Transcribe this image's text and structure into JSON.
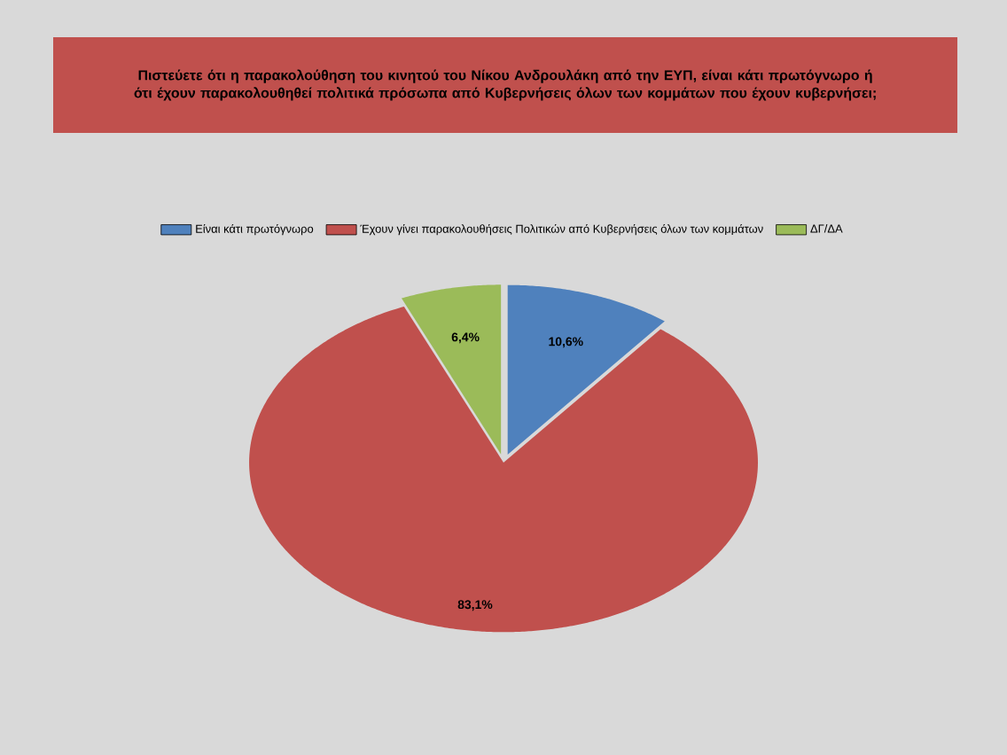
{
  "chart_data": {
    "type": "pie",
    "title": "Πιστεύετε ότι η παρακολούθηση του κινητού του Νίκου Ανδρουλάκη από την ΕΥΠ, είναι κάτι πρωτόγνωρο ή ότι έχουν παρακολουθηθεί πολιτικά πρόσωπα από Κυβερνήσεις όλων των κομμάτων που έχουν κυβερνήσει;",
    "categories": [
      "Είναι κάτι πρωτόγνωρο",
      "Έχουν γίνει παρακολουθήσεις Πολιτικών από Κυβερνήσεις όλων των κομμάτων",
      "ΔΓ/ΔΑ"
    ],
    "values": [
      10.6,
      83.1,
      6.4
    ],
    "colors": [
      "#4f81bd",
      "#c0504d",
      "#9bbb59"
    ],
    "value_labels": [
      "10,6%",
      "83,1%",
      "6,4%"
    ],
    "legend": "top"
  }
}
